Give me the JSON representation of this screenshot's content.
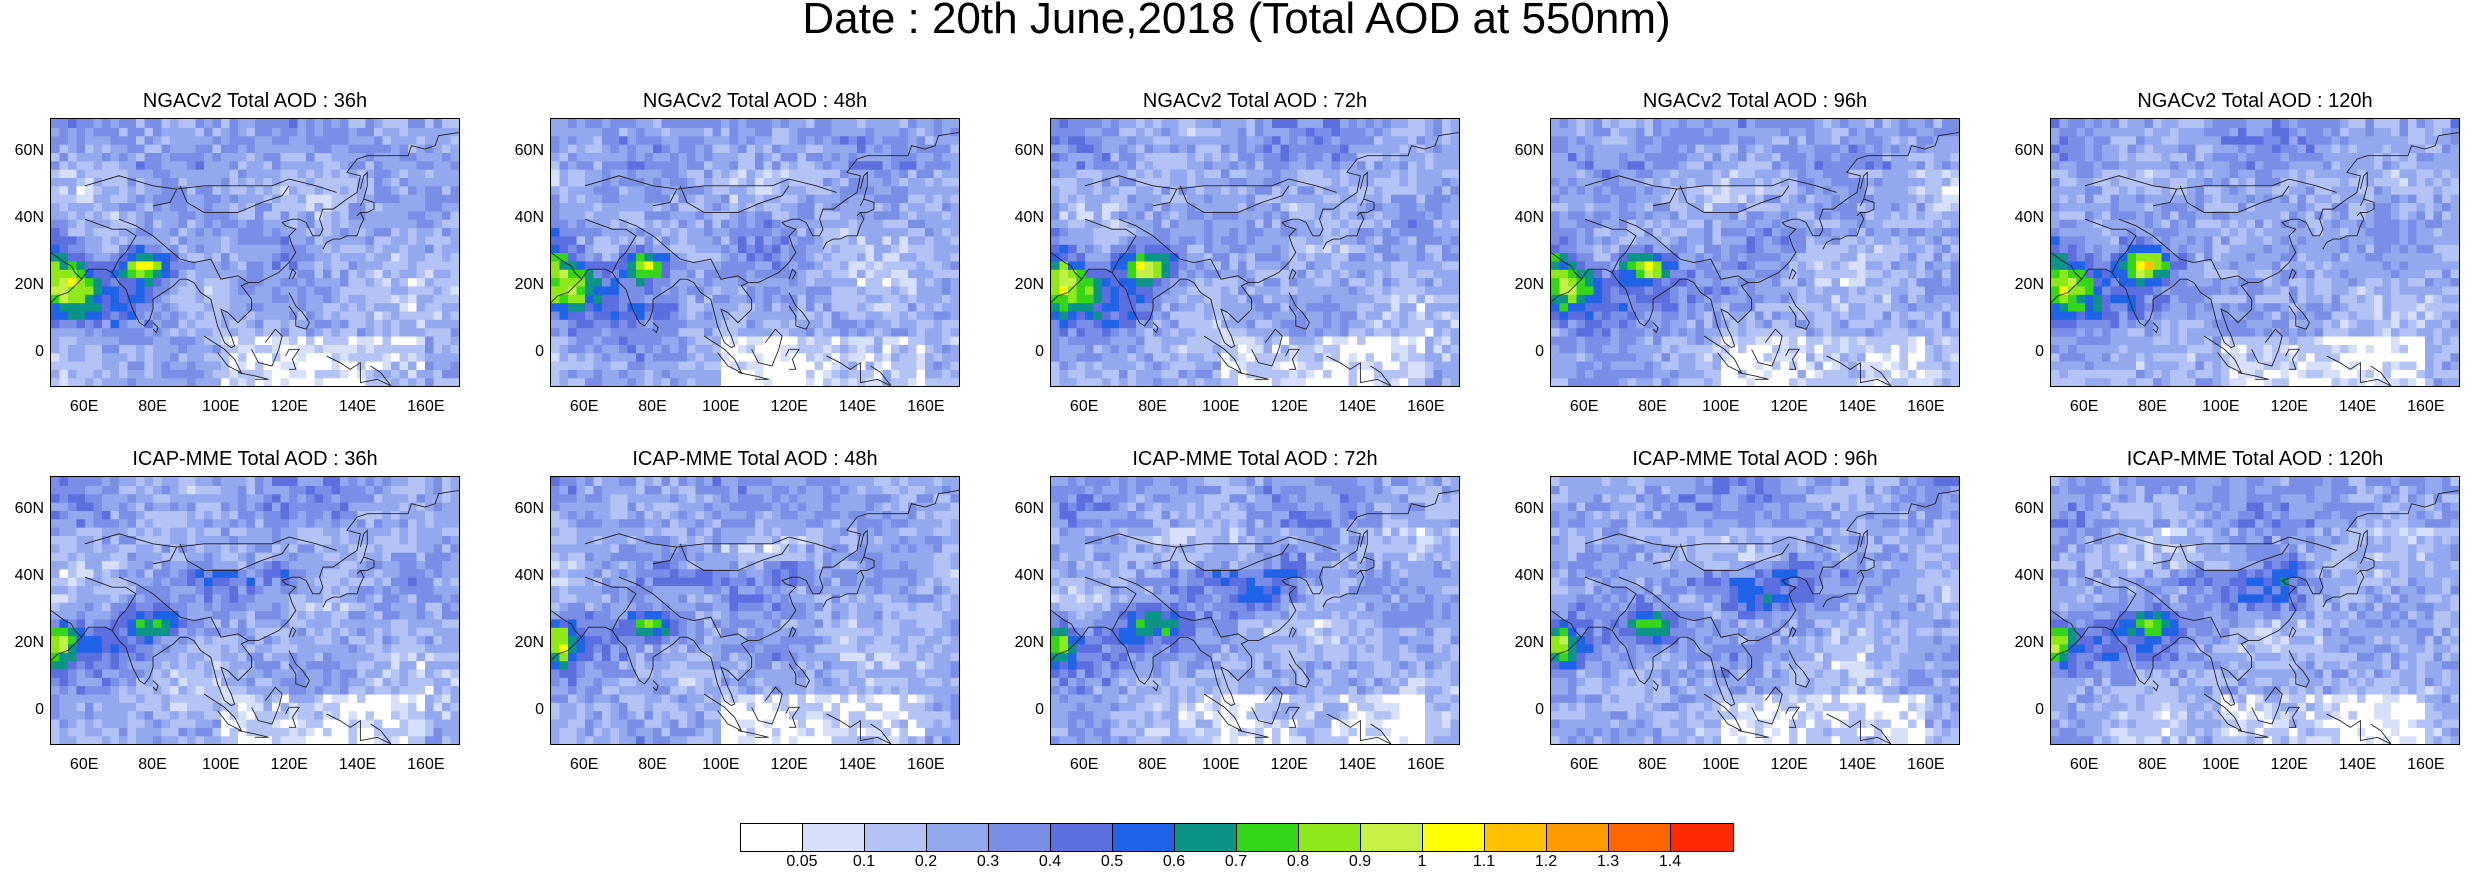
{
  "title": "Date : 20th June,2018 (Total AOD at 550nm)",
  "panels": [
    {
      "label": "NGACv2 Total AOD : 36h",
      "model": "ngac",
      "lead": 36
    },
    {
      "label": "NGACv2 Total AOD : 48h",
      "model": "ngac",
      "lead": 48
    },
    {
      "label": "NGACv2 Total AOD : 72h",
      "model": "ngac",
      "lead": 72
    },
    {
      "label": "NGACv2 Total AOD : 96h",
      "model": "ngac",
      "lead": 96
    },
    {
      "label": "NGACv2 Total AOD : 120h",
      "model": "ngac",
      "lead": 120
    },
    {
      "label": "ICAP-MME Total AOD : 36h",
      "model": "icap",
      "lead": 36
    },
    {
      "label": "ICAP-MME Total AOD : 48h",
      "model": "icap",
      "lead": 48
    },
    {
      "label": "ICAP-MME Total AOD : 72h",
      "model": "icap",
      "lead": 72
    },
    {
      "label": "ICAP-MME Total AOD : 96h",
      "model": "icap",
      "lead": 96
    },
    {
      "label": "ICAP-MME Total AOD : 120h",
      "model": "icap",
      "lead": 120
    }
  ],
  "axes": {
    "lat_ticks": [
      "60N",
      "40N",
      "20N",
      "0"
    ],
    "lon_ticks": [
      "60E",
      "80E",
      "100E",
      "120E",
      "140E",
      "160E"
    ],
    "lon_range": [
      50,
      170
    ],
    "lat_range": [
      -10,
      70
    ]
  },
  "colorbar": {
    "labels": [
      "0.05",
      "0.1",
      "0.2",
      "0.3",
      "0.4",
      "0.5",
      "0.6",
      "0.7",
      "0.8",
      "0.9",
      "1",
      "1.1",
      "1.2",
      "1.3",
      "1.4"
    ],
    "colors": [
      "#ffffff",
      "#d6e0fa",
      "#b3c3f5",
      "#93a8ef",
      "#7a8ee8",
      "#5c6ee0",
      "#1f63e8",
      "#0d9488",
      "#35d61a",
      "#8ee81a",
      "#c5f045",
      "#ffff00",
      "#ffc000",
      "#ff9900",
      "#ff6600",
      "#ff2a00"
    ]
  }
}
